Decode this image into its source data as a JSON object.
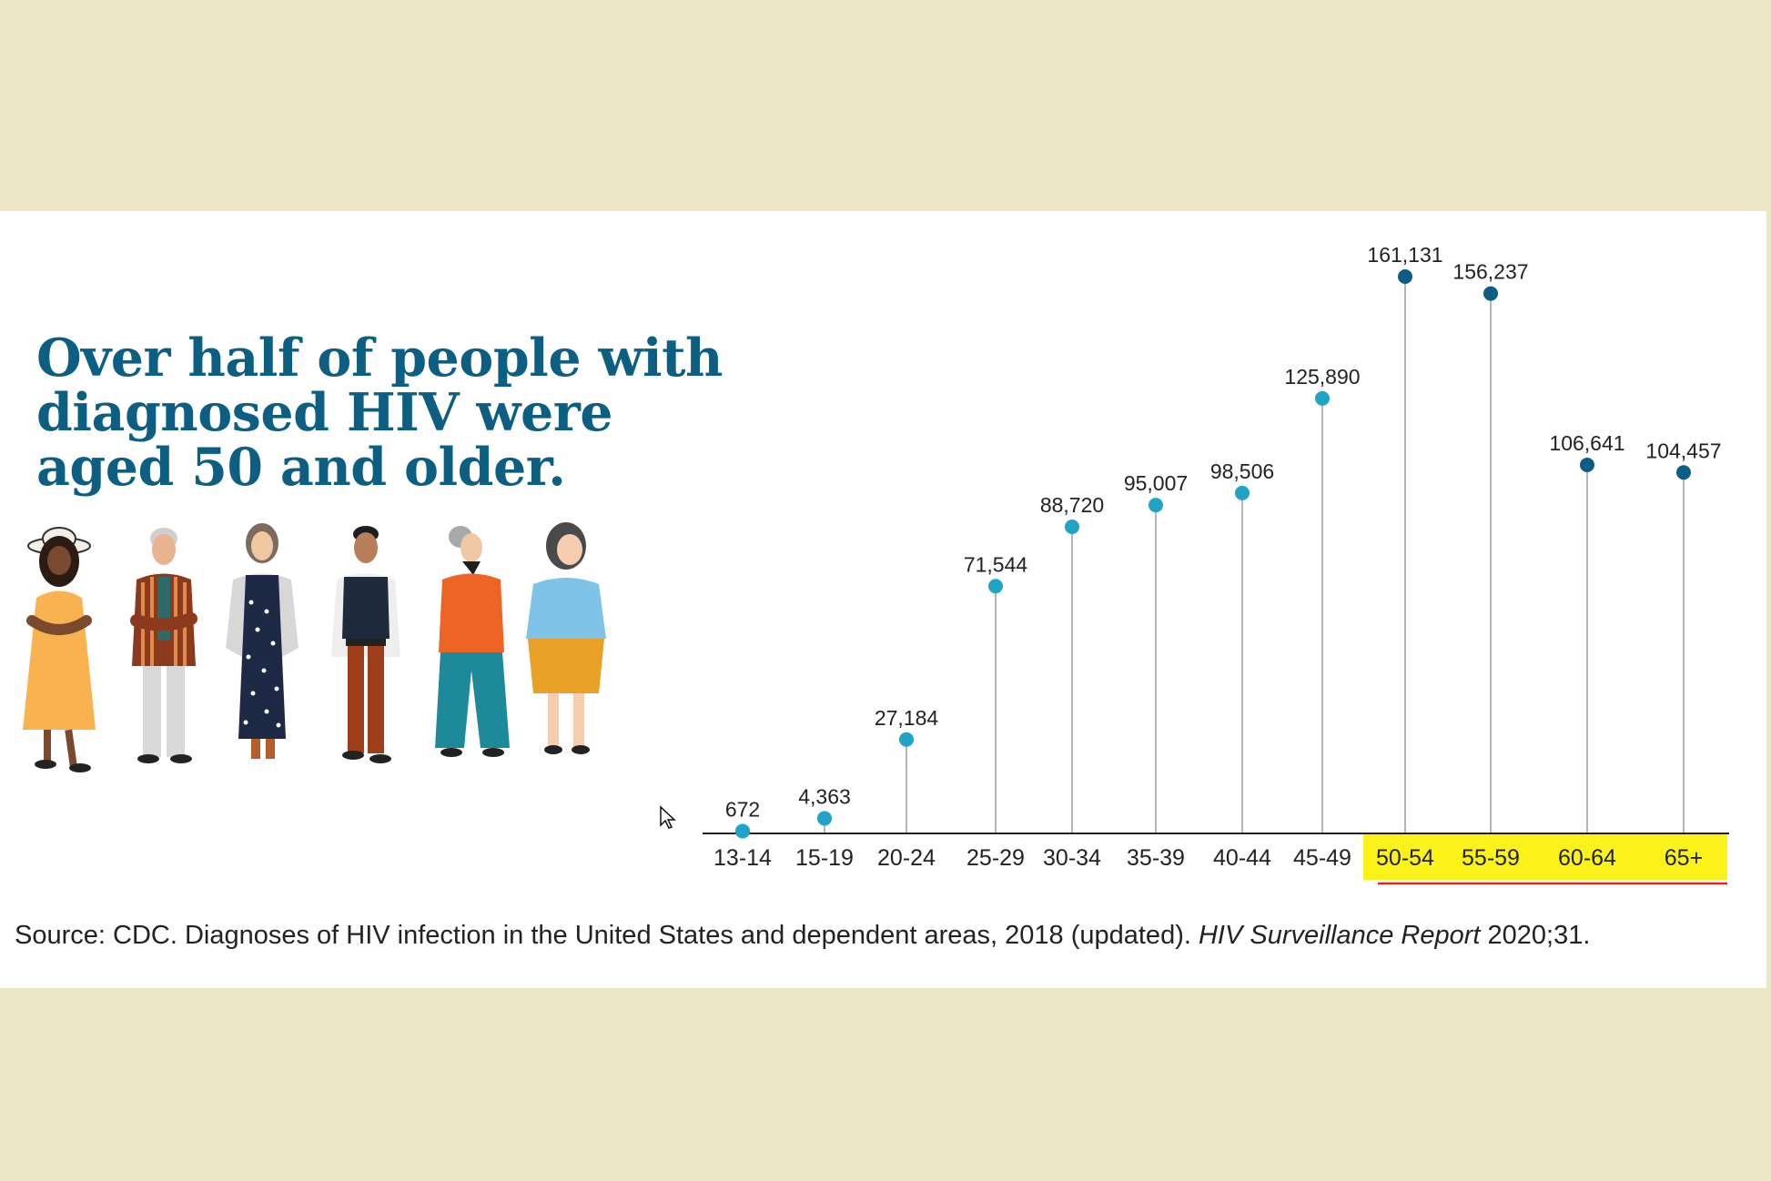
{
  "slide": {
    "headline": "Over half of people with diagnosed HIV were aged 50 and older.",
    "source_prefix": "Source: CDC. Diagnoses of HIV infection in the United States and dependent areas, 2018 (updated). ",
    "source_journal": "HIV Surveillance Report",
    "source_suffix": " 2020;31."
  },
  "colors": {
    "headline": "#0c5f82",
    "point_under_50": "#1fa3c6",
    "point_50_plus": "#0d5e86",
    "stem": "#b5b5b5",
    "highlight": "#fbf21a",
    "underline": "#e02424"
  },
  "illustration": {
    "figures": [
      "woman-yellow-dress-hat",
      "man-striped-jacket",
      "woman-polka-dot-dress",
      "man-vest",
      "woman-orange-top",
      "woman-blue-top"
    ]
  },
  "chart_data": {
    "type": "lollipop",
    "title": "",
    "xlabel": "",
    "ylabel": "",
    "categories": [
      "13-14",
      "15-19",
      "20-24",
      "25-29",
      "30-34",
      "35-39",
      "40-44",
      "45-49",
      "50-54",
      "55-59",
      "60-64",
      "65+"
    ],
    "values": [
      672,
      4363,
      27184,
      71544,
      88720,
      95007,
      98506,
      125890,
      161131,
      156237,
      106641,
      104457
    ],
    "value_labels": [
      "672",
      "4,363",
      "27,184",
      "71,544",
      "88,720",
      "95,007",
      "98,506",
      "125,890",
      "161,131",
      "156,237",
      "106,641",
      "104,457"
    ],
    "highlighted_categories": [
      "50-54",
      "55-59",
      "60-64",
      "65+"
    ],
    "ylim": [
      0,
      161131
    ],
    "grid": false,
    "legend": "none"
  }
}
